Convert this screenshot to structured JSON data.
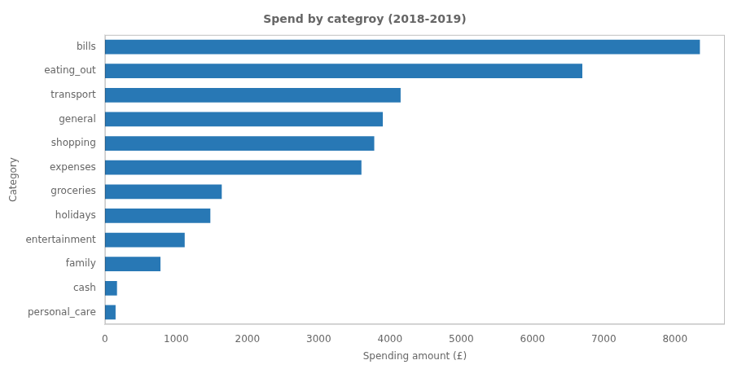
{
  "chart_data": {
    "type": "bar",
    "orientation": "horizontal",
    "title": "Spend by categroy (2018-2019)",
    "xlabel": "Spending amount (£)",
    "ylabel": "Category",
    "categories": [
      "personal_care",
      "cash",
      "family",
      "entertainment",
      "holidays",
      "groceries",
      "expenses",
      "shopping",
      "general",
      "transport",
      "eating_out",
      "bills"
    ],
    "values": [
      150,
      170,
      780,
      1120,
      1480,
      1640,
      3600,
      3780,
      3900,
      4150,
      6700,
      8350
    ],
    "color": "#2878b5",
    "xlim": [
      0,
      8700
    ],
    "xticks": [
      0,
      1000,
      2000,
      3000,
      4000,
      5000,
      6000,
      7000,
      8000
    ],
    "grid": false
  }
}
